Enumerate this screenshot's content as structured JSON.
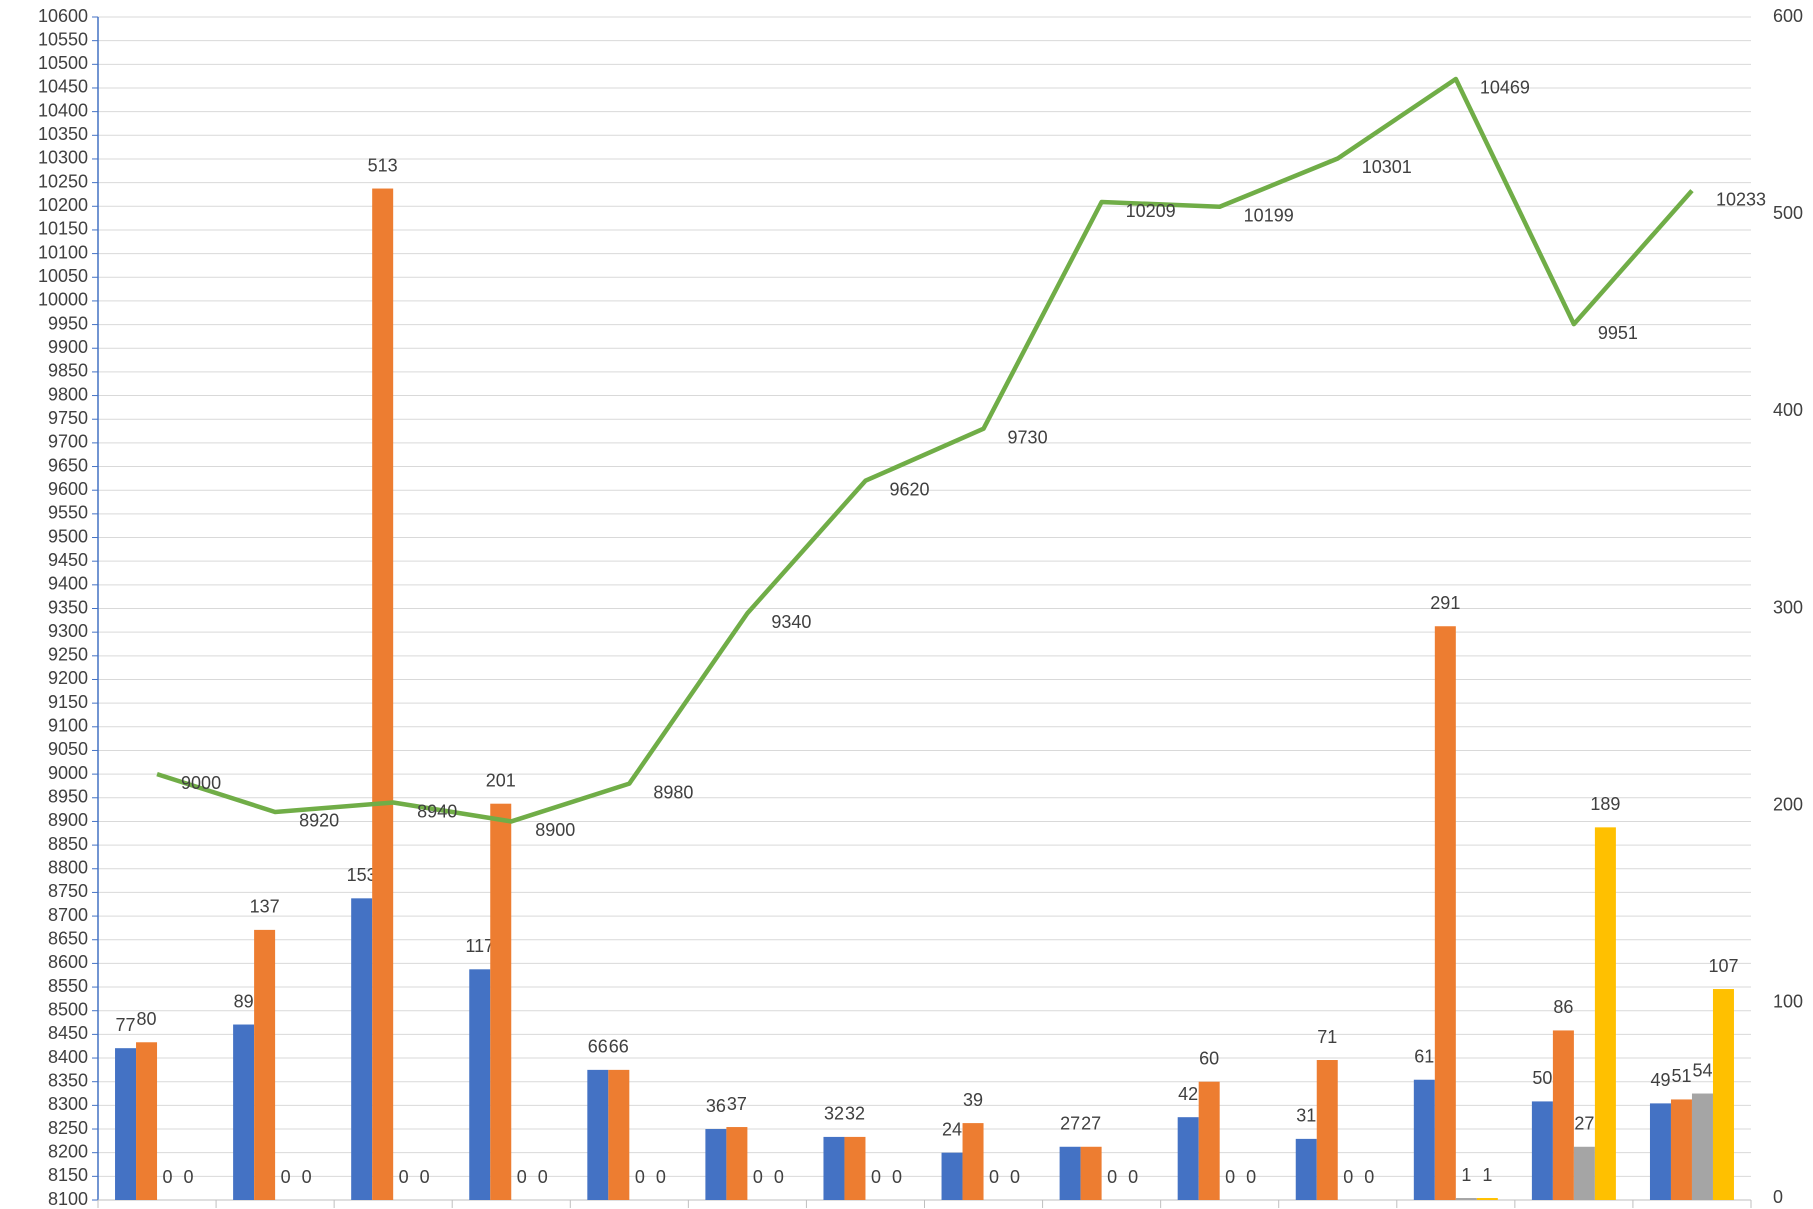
{
  "chart_data": {
    "type": "bar_line",
    "categories": [
      null,
      null,
      null,
      null,
      null,
      null,
      null,
      null,
      null,
      null,
      null,
      null,
      null,
      null
    ],
    "series": [
      {
        "type": "bar",
        "axis": "y2",
        "color": "#4472c4",
        "values": [
          77,
          89,
          153,
          117,
          66,
          36,
          32,
          24,
          27,
          42,
          31,
          61,
          50,
          49
        ]
      },
      {
        "type": "bar",
        "axis": "y2",
        "color": "#ed7d31",
        "values": [
          80,
          137,
          513,
          201,
          66,
          37,
          32,
          39,
          27,
          60,
          71,
          291,
          86,
          51
        ]
      },
      {
        "type": "bar",
        "axis": "y2",
        "color": "#a5a5a5",
        "values": [
          0,
          0,
          0,
          0,
          0,
          0,
          0,
          0,
          0,
          0,
          0,
          1,
          27,
          54
        ]
      },
      {
        "type": "bar",
        "axis": "y2",
        "color": "#ffc000",
        "values": [
          0,
          0,
          0,
          0,
          0,
          0,
          0,
          0,
          0,
          0,
          0,
          1,
          189,
          107
        ]
      },
      {
        "type": "line",
        "axis": "y",
        "color": "#70ad47",
        "values": [
          9000,
          8920,
          8940,
          8900,
          8980,
          9340,
          9620,
          9730,
          10209,
          10199,
          10301,
          10469,
          9951,
          10233
        ]
      }
    ],
    "ylim": [
      8100,
      10600
    ],
    "yticks": [
      8100,
      8150,
      8200,
      8250,
      8300,
      8350,
      8400,
      8450,
      8500,
      8550,
      8600,
      8650,
      8700,
      8750,
      8800,
      8850,
      8900,
      8950,
      9000,
      9050,
      9100,
      9150,
      9200,
      9250,
      9300,
      9350,
      9400,
      9450,
      9500,
      9550,
      9600,
      9650,
      9700,
      9750,
      9800,
      9850,
      9900,
      9950,
      10000,
      10050,
      10100,
      10150,
      10200,
      10250,
      10300,
      10350,
      10400,
      10450,
      10500,
      10550,
      10600
    ],
    "y2lim": [
      0,
      600
    ],
    "y2ticks": [
      0,
      100,
      200,
      300,
      400,
      500,
      600
    ],
    "grid": true
  }
}
